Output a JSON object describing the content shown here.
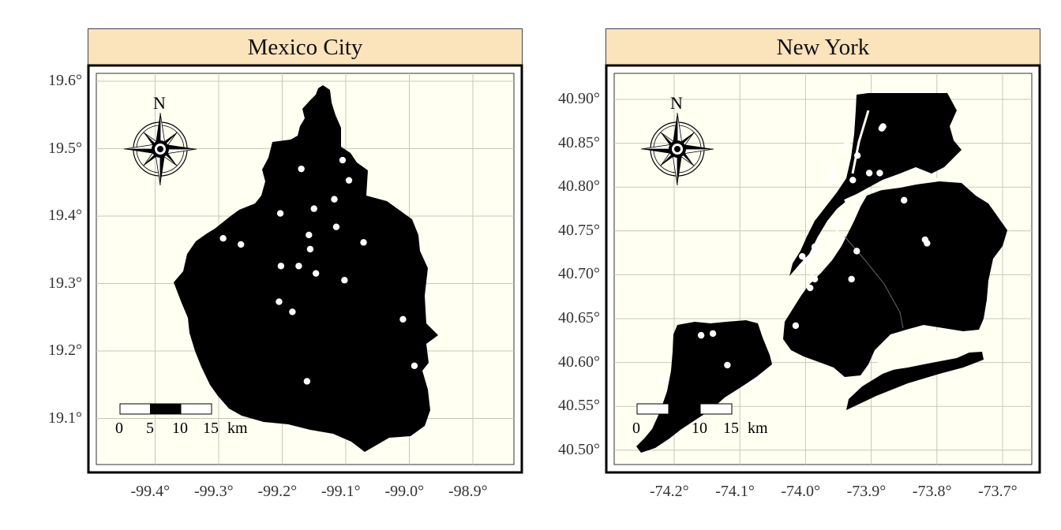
{
  "panels": [
    {
      "title": "Mexico City",
      "y_ticks": [
        {
          "value": 19.6,
          "label": "19.6°"
        },
        {
          "value": 19.5,
          "label": "19.5°"
        },
        {
          "value": 19.4,
          "label": "19.4°"
        },
        {
          "value": 19.3,
          "label": "19.3°"
        },
        {
          "value": 19.2,
          "label": "19.2°"
        },
        {
          "value": 19.1,
          "label": "19.1°"
        }
      ],
      "x_ticks": [
        {
          "value": -99.4,
          "label": "-99.4°"
        },
        {
          "value": -99.3,
          "label": "-99.3°"
        },
        {
          "value": -99.2,
          "label": "-99.2°"
        },
        {
          "value": -99.1,
          "label": "-99.1°"
        },
        {
          "value": -99.0,
          "label": "-99.0°"
        },
        {
          "value": -98.9,
          "label": "-98.9°"
        }
      ],
      "compass_label": "N",
      "scale_bar": {
        "labels": [
          "0",
          "5",
          "10",
          "15"
        ],
        "unit": "km"
      },
      "points": [
        [
          -99.17,
          19.47
        ],
        [
          -99.105,
          19.483
        ],
        [
          -99.095,
          19.453
        ],
        [
          -99.203,
          19.404
        ],
        [
          -99.15,
          19.411
        ],
        [
          -99.118,
          19.425
        ],
        [
          -99.115,
          19.384
        ],
        [
          -99.158,
          19.372
        ],
        [
          -99.072,
          19.361
        ],
        [
          -99.293,
          19.367
        ],
        [
          -99.265,
          19.358
        ],
        [
          -99.156,
          19.351
        ],
        [
          -99.202,
          19.326
        ],
        [
          -99.174,
          19.326
        ],
        [
          -99.147,
          19.315
        ],
        [
          -99.102,
          19.305
        ],
        [
          -99.205,
          19.273
        ],
        [
          -99.184,
          19.258
        ],
        [
          -99.01,
          19.247
        ],
        [
          -98.992,
          19.178
        ],
        [
          -99.161,
          19.155
        ]
      ]
    },
    {
      "title": "New York",
      "y_ticks": [
        {
          "value": 40.9,
          "label": "40.90°"
        },
        {
          "value": 40.85,
          "label": "40.85°"
        },
        {
          "value": 40.8,
          "label": "40.80°"
        },
        {
          "value": 40.75,
          "label": "40.75°"
        },
        {
          "value": 40.7,
          "label": "40.70°"
        },
        {
          "value": 40.65,
          "label": "40.65°"
        },
        {
          "value": 40.6,
          "label": "40.60°"
        },
        {
          "value": 40.55,
          "label": "40.55°"
        },
        {
          "value": 40.5,
          "label": "40.50°"
        }
      ],
      "x_ticks": [
        {
          "value": -74.2,
          "label": "-74.2°"
        },
        {
          "value": -74.1,
          "label": "-74.1°"
        },
        {
          "value": -74.0,
          "label": "-74.0°"
        },
        {
          "value": -73.9,
          "label": "-73.9°"
        },
        {
          "value": -73.8,
          "label": "-73.8°"
        },
        {
          "value": -73.7,
          "label": "-73.7°"
        }
      ],
      "compass_label": "N",
      "scale_bar": {
        "labels": [
          "0",
          "5",
          "10",
          "15"
        ],
        "unit": "km"
      },
      "points": [
        [
          -73.884,
          40.867
        ],
        [
          -73.882,
          40.869
        ],
        [
          -73.937,
          40.849
        ],
        [
          -73.921,
          40.836
        ],
        [
          -73.959,
          40.82
        ],
        [
          -73.961,
          40.812
        ],
        [
          -73.903,
          40.816
        ],
        [
          -73.887,
          40.816
        ],
        [
          -73.928,
          40.808
        ],
        [
          -73.85,
          40.785
        ],
        [
          -73.953,
          40.758
        ],
        [
          -73.815,
          40.736
        ],
        [
          -73.818,
          40.74
        ],
        [
          -73.986,
          40.732
        ],
        [
          -73.987,
          40.726
        ],
        [
          -73.922,
          40.727
        ],
        [
          -74.005,
          40.721
        ],
        [
          -73.999,
          40.716
        ],
        [
          -74.006,
          40.709
        ],
        [
          -73.986,
          40.695
        ],
        [
          -73.93,
          40.695
        ],
        [
          -73.993,
          40.685
        ],
        [
          -74.015,
          40.642
        ],
        [
          -74.141,
          40.633
        ],
        [
          -74.159,
          40.631
        ],
        [
          -74.119,
          40.597
        ],
        [
          -74.216,
          40.58
        ]
      ]
    }
  ]
}
